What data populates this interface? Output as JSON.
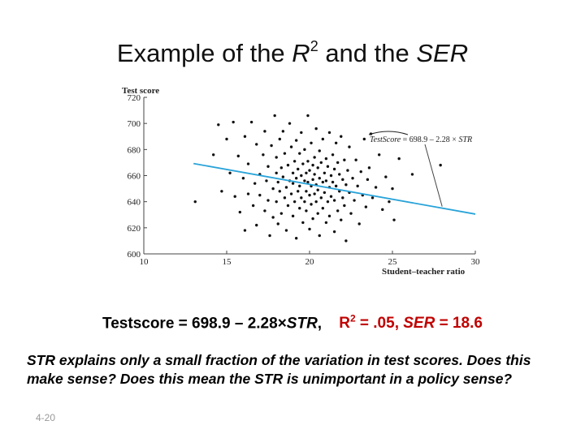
{
  "title": {
    "pre": "Example of the ",
    "r_symbol": "R",
    "r_exp": "2",
    "mid": " and the ",
    "ser": "SER"
  },
  "colors": {
    "regression_line": "#29a3d9",
    "annotation_line": "#444444",
    "points": "#111111",
    "red_text": "#c00000"
  },
  "chart_data": {
    "type": "scatter",
    "ylabel": "Test score",
    "xlabel": "Student–teacher ratio",
    "xlim": [
      10,
      30
    ],
    "ylim": [
      600,
      720
    ],
    "xticks": [
      "10",
      "15",
      "20",
      "25",
      "30"
    ],
    "yticks": [
      "600",
      "620",
      "640",
      "660",
      "680",
      "700",
      "720"
    ],
    "grid": false,
    "regression": {
      "intercept": 698.9,
      "slope": -2.28,
      "x_range": [
        13,
        30
      ],
      "annotation": {
        "label_name": "TestScore",
        "label_rest": " = 698.9 – 2.28 × ",
        "label_var": "STR",
        "label_position": "upper-right"
      }
    },
    "points": [
      [
        14.5,
        699
      ],
      [
        14.7,
        648
      ],
      [
        15.0,
        688
      ],
      [
        15.2,
        662
      ],
      [
        15.4,
        701
      ],
      [
        15.5,
        644
      ],
      [
        15.7,
        675
      ],
      [
        15.8,
        632
      ],
      [
        16.0,
        658
      ],
      [
        16.1,
        690
      ],
      [
        16.1,
        618
      ],
      [
        16.3,
        646
      ],
      [
        16.3,
        669
      ],
      [
        16.5,
        701
      ],
      [
        16.6,
        637
      ],
      [
        16.7,
        654
      ],
      [
        16.8,
        684
      ],
      [
        16.8,
        622
      ],
      [
        17.0,
        661
      ],
      [
        17.0,
        645
      ],
      [
        17.2,
        676
      ],
      [
        17.3,
        633
      ],
      [
        17.3,
        694
      ],
      [
        17.4,
        656
      ],
      [
        17.5,
        641
      ],
      [
        17.5,
        667
      ],
      [
        17.6,
        614
      ],
      [
        17.7,
        683
      ],
      [
        17.8,
        650
      ],
      [
        17.8,
        628
      ],
      [
        17.9,
        706
      ],
      [
        18.0,
        662
      ],
      [
        18.0,
        640
      ],
      [
        18.0,
        674
      ],
      [
        18.1,
        655
      ],
      [
        18.1,
        623
      ],
      [
        18.2,
        688
      ],
      [
        18.2,
        648
      ],
      [
        18.3,
        666
      ],
      [
        18.3,
        631
      ],
      [
        18.4,
        659
      ],
      [
        18.4,
        694
      ],
      [
        18.5,
        643
      ],
      [
        18.5,
        677
      ],
      [
        18.6,
        651
      ],
      [
        18.6,
        618
      ],
      [
        18.7,
        668
      ],
      [
        18.7,
        637
      ],
      [
        18.8,
        656
      ],
      [
        18.8,
        700
      ],
      [
        18.9,
        646
      ],
      [
        18.9,
        682
      ],
      [
        19.0,
        662
      ],
      [
        19.0,
        629
      ],
      [
        19.0,
        654
      ],
      [
        19.1,
        671
      ],
      [
        19.1,
        640
      ],
      [
        19.2,
        658
      ],
      [
        19.2,
        687
      ],
      [
        19.2,
        612
      ],
      [
        19.3,
        648
      ],
      [
        19.3,
        665
      ],
      [
        19.4,
        635
      ],
      [
        19.4,
        677
      ],
      [
        19.4,
        652
      ],
      [
        19.5,
        660
      ],
      [
        19.5,
        643
      ],
      [
        19.5,
        693
      ],
      [
        19.6,
        669
      ],
      [
        19.6,
        624
      ],
      [
        19.7,
        656
      ],
      [
        19.7,
        640
      ],
      [
        19.7,
        680
      ],
      [
        19.8,
        662
      ],
      [
        19.8,
        648
      ],
      [
        19.8,
        633
      ],
      [
        19.9,
        671
      ],
      [
        19.9,
        655
      ],
      [
        19.9,
        706
      ],
      [
        20.0,
        645
      ],
      [
        20.0,
        664
      ],
      [
        20.0,
        619
      ],
      [
        20.1,
        652
      ],
      [
        20.1,
        685
      ],
      [
        20.1,
        638
      ],
      [
        20.2,
        668
      ],
      [
        20.2,
        657
      ],
      [
        20.2,
        627
      ],
      [
        20.3,
        646
      ],
      [
        20.3,
        674
      ],
      [
        20.3,
        661
      ],
      [
        20.4,
        640
      ],
      [
        20.4,
        696
      ],
      [
        20.4,
        653
      ],
      [
        20.5,
        666
      ],
      [
        20.5,
        631
      ],
      [
        20.5,
        649
      ],
      [
        20.6,
        679
      ],
      [
        20.6,
        658
      ],
      [
        20.6,
        614
      ],
      [
        20.7,
        643
      ],
      [
        20.7,
        670
      ],
      [
        20.8,
        655
      ],
      [
        20.8,
        635
      ],
      [
        20.8,
        688
      ],
      [
        20.9,
        662
      ],
      [
        20.9,
        647
      ],
      [
        21.0,
        624
      ],
      [
        21.0,
        673
      ],
      [
        21.0,
        656
      ],
      [
        21.1,
        640
      ],
      [
        21.1,
        667
      ],
      [
        21.2,
        651
      ],
      [
        21.2,
        693
      ],
      [
        21.2,
        629
      ],
      [
        21.3,
        660
      ],
      [
        21.3,
        644
      ],
      [
        21.4,
        676
      ],
      [
        21.4,
        655
      ],
      [
        21.5,
        617
      ],
      [
        21.5,
        665
      ],
      [
        21.5,
        641
      ],
      [
        21.6,
        685
      ],
      [
        21.6,
        652
      ],
      [
        21.7,
        633
      ],
      [
        21.7,
        670
      ],
      [
        21.8,
        648
      ],
      [
        21.8,
        661
      ],
      [
        21.9,
        626
      ],
      [
        21.9,
        690
      ],
      [
        22.0,
        657
      ],
      [
        22.0,
        643
      ],
      [
        22.1,
        672
      ],
      [
        22.1,
        637
      ],
      [
        22.2,
        653
      ],
      [
        22.2,
        610
      ],
      [
        22.3,
        664
      ],
      [
        22.4,
        647
      ],
      [
        22.4,
        682
      ],
      [
        22.5,
        631
      ],
      [
        22.6,
        658
      ],
      [
        22.7,
        641
      ],
      [
        22.8,
        672
      ],
      [
        22.9,
        652
      ],
      [
        23.0,
        623
      ],
      [
        23.1,
        663
      ],
      [
        23.2,
        645
      ],
      [
        23.3,
        688
      ],
      [
        23.4,
        636
      ],
      [
        23.5,
        657
      ],
      [
        23.6,
        666
      ],
      [
        23.8,
        643
      ],
      [
        24.0,
        651
      ],
      [
        24.2,
        676
      ],
      [
        24.4,
        634
      ],
      [
        24.6,
        659
      ],
      [
        25.0,
        650
      ],
      [
        25.1,
        626
      ],
      [
        25.4,
        673
      ],
      [
        26.2,
        661
      ],
      [
        14.2,
        676
      ],
      [
        23.7,
        692
      ],
      [
        24.8,
        640
      ],
      [
        13.1,
        640
      ],
      [
        27.9,
        668
      ]
    ]
  },
  "equation": {
    "left": "Testscore = 698.9 – 2.28×",
    "str": "STR",
    "comma": ",    ",
    "r2": "R",
    "r2_exp": "2",
    "r2_val": " = .05, ",
    "ser": "SER",
    "ser_val": " = 18.6"
  },
  "caption": {
    "line1": "STR explains only a small fraction of the variation in test scores.  Does this",
    "line2": "make sense?  Does this mean the STR is unimportant in a policy sense?"
  },
  "slide_number": "4-20"
}
